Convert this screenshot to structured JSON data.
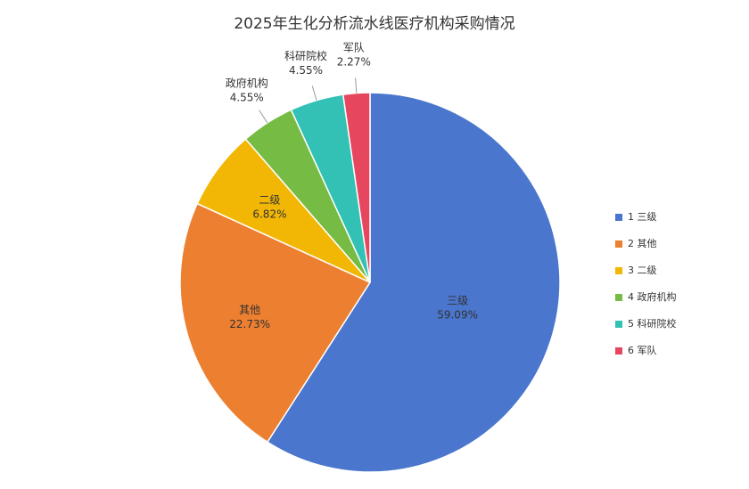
{
  "chart_data": {
    "type": "pie",
    "title": "2025年生化分析流水线医疗机构采购情况",
    "categories": [
      "三级",
      "其他",
      "二级",
      "政府机构",
      "科研院校",
      "军队"
    ],
    "legend_labels": [
      "1 三级",
      "2 其他",
      "3 二级",
      "4 政府机构",
      "5 科研院校",
      "6 军队"
    ],
    "values": [
      59.09,
      22.73,
      6.82,
      4.55,
      4.55,
      2.27
    ],
    "value_labels": [
      "59.09%",
      "22.73%",
      "6.82%",
      "4.55%",
      "4.55%",
      "2.27%"
    ],
    "colors": [
      "#4a76cd",
      "#ed7f30",
      "#f2b705",
      "#76bb43",
      "#33c1b5",
      "#e6475e"
    ],
    "legend": "right"
  }
}
